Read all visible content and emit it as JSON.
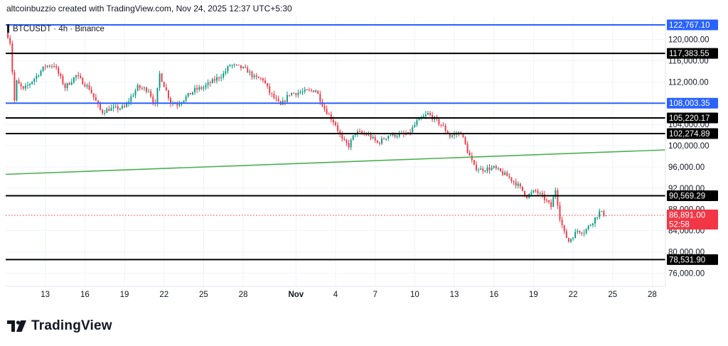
{
  "header": {
    "credit": "altcoinbuzzio created with TradingView.com, Nov 24, 2025 12:37 UTC+5:30"
  },
  "footer": {
    "brand": "TradingView"
  },
  "chart_data": {
    "type": "candlestick",
    "title": "BTCUSDT · 4h · Binance",
    "y_axis": {
      "range": [
        73500,
        124500
      ],
      "ticks": [
        {
          "label": "120,000.00",
          "value": 120000
        },
        {
          "label": "116,000.00",
          "value": 116000
        },
        {
          "label": "112,000.00",
          "value": 112000
        },
        {
          "label": "104,000.00",
          "value": 104000
        },
        {
          "label": "100,000.00",
          "value": 100000
        },
        {
          "label": "96,000.00",
          "value": 96000
        },
        {
          "label": "92,000.00",
          "value": 92000
        },
        {
          "label": "88,000.00",
          "value": 88000
        },
        {
          "label": "84,000.00",
          "value": 84000
        },
        {
          "label": "80,000.00",
          "value": 80000
        },
        {
          "label": "76,000.00",
          "value": 76000
        }
      ]
    },
    "x_axis": {
      "range": [
        "2025-10-10",
        "2025-11-29"
      ],
      "ticks": [
        {
          "label": "13",
          "date": "2025-10-13"
        },
        {
          "label": "16",
          "date": "2025-10-16"
        },
        {
          "label": "19",
          "date": "2025-10-19"
        },
        {
          "label": "22",
          "date": "2025-10-22"
        },
        {
          "label": "25",
          "date": "2025-10-25"
        },
        {
          "label": "28",
          "date": "2025-10-28"
        },
        {
          "label": "Nov",
          "date": "2025-11-01",
          "bold": true
        },
        {
          "label": "4",
          "date": "2025-11-04"
        },
        {
          "label": "7",
          "date": "2025-11-07"
        },
        {
          "label": "10",
          "date": "2025-11-10"
        },
        {
          "label": "13",
          "date": "2025-11-13"
        },
        {
          "label": "16",
          "date": "2025-11-16"
        },
        {
          "label": "19",
          "date": "2025-11-19"
        },
        {
          "label": "22",
          "date": "2025-11-22"
        },
        {
          "label": "25",
          "date": "2025-11-25"
        },
        {
          "label": "28",
          "date": "2025-11-28"
        }
      ]
    },
    "levels": [
      {
        "value": 122767.1,
        "label": "122,767.10",
        "color": "#2962ff"
      },
      {
        "value": 117383.55,
        "label": "117,383.55",
        "color": "#000000"
      },
      {
        "value": 108003.35,
        "label": "108,003.35",
        "color": "#2962ff"
      },
      {
        "value": 105220.17,
        "label": "105,220.17",
        "color": "#000000"
      },
      {
        "value": 102274.89,
        "label": "102,274.89",
        "color": "#000000"
      },
      {
        "value": 90569.29,
        "label": "90,569.29",
        "color": "#000000"
      },
      {
        "value": 78531.9,
        "label": "78,531.90",
        "color": "#000000"
      }
    ],
    "trendline": {
      "color": "#4caf50",
      "points": [
        {
          "date": "2025-10-10",
          "value": 94600
        },
        {
          "date": "2025-11-29",
          "value": 99200
        }
      ]
    },
    "last_price": {
      "value": 86891.0,
      "label": "86,891.00",
      "countdown": "52:58",
      "color": "#f23645"
    },
    "candle_colors": {
      "up": "#089981",
      "down": "#f23645"
    },
    "close_path": [
      {
        "date": "2025-10-10T00:00",
        "close": 122000
      },
      {
        "date": "2025-10-10T08:00",
        "close": 119500
      },
      {
        "date": "2025-10-10T16:00",
        "close": 108500
      },
      {
        "date": "2025-10-10T20:00",
        "close": 112000
      },
      {
        "date": "2025-10-11T08:00",
        "close": 110500
      },
      {
        "date": "2025-10-12T00:00",
        "close": 112200
      },
      {
        "date": "2025-10-13T00:00",
        "close": 115000
      },
      {
        "date": "2025-10-13T16:00",
        "close": 115200
      },
      {
        "date": "2025-10-14T12:00",
        "close": 111000
      },
      {
        "date": "2025-10-15T08:00",
        "close": 113200
      },
      {
        "date": "2025-10-16T08:00",
        "close": 110800
      },
      {
        "date": "2025-10-17T06:00",
        "close": 106300
      },
      {
        "date": "2025-10-17T20:00",
        "close": 106900
      },
      {
        "date": "2025-10-19T00:00",
        "close": 107200
      },
      {
        "date": "2025-10-20T00:00",
        "close": 111000
      },
      {
        "date": "2025-10-20T20:00",
        "close": 110500
      },
      {
        "date": "2025-10-21T08:00",
        "close": 107500
      },
      {
        "date": "2025-10-21T16:00",
        "close": 113500
      },
      {
        "date": "2025-10-22T12:00",
        "close": 108200
      },
      {
        "date": "2025-10-23T00:00",
        "close": 107800
      },
      {
        "date": "2025-10-24T08:00",
        "close": 110500
      },
      {
        "date": "2025-10-25T00:00",
        "close": 111000
      },
      {
        "date": "2025-10-26T12:00",
        "close": 113500
      },
      {
        "date": "2025-10-27T00:00",
        "close": 115200
      },
      {
        "date": "2025-10-27T20:00",
        "close": 114700
      },
      {
        "date": "2025-10-28T08:00",
        "close": 114100
      },
      {
        "date": "2025-10-28T20:00",
        "close": 112800
      },
      {
        "date": "2025-10-29T12:00",
        "close": 112500
      },
      {
        "date": "2025-10-30T00:00",
        "close": 110000
      },
      {
        "date": "2025-10-30T20:00",
        "close": 107500
      },
      {
        "date": "2025-10-31T12:00",
        "close": 109800
      },
      {
        "date": "2025-11-01T12:00",
        "close": 110100
      },
      {
        "date": "2025-11-02T12:00",
        "close": 110500
      },
      {
        "date": "2025-11-03T04:00",
        "close": 107000
      },
      {
        "date": "2025-11-04T00:00",
        "close": 104000
      },
      {
        "date": "2025-11-04T12:00",
        "close": 101000
      },
      {
        "date": "2025-11-05T00:00",
        "close": 100000
      },
      {
        "date": "2025-11-05T12:00",
        "close": 102500
      },
      {
        "date": "2025-11-06T12:00",
        "close": 102000
      },
      {
        "date": "2025-11-07T04:00",
        "close": 100500
      },
      {
        "date": "2025-11-07T12:00",
        "close": 101000
      },
      {
        "date": "2025-11-08T00:00",
        "close": 102000
      },
      {
        "date": "2025-11-09T12:00",
        "close": 102100
      },
      {
        "date": "2025-11-10T04:00",
        "close": 104500
      },
      {
        "date": "2025-11-11T00:00",
        "close": 106000
      },
      {
        "date": "2025-11-11T12:00",
        "close": 105000
      },
      {
        "date": "2025-11-12T04:00",
        "close": 103500
      },
      {
        "date": "2025-11-12T16:00",
        "close": 101800
      },
      {
        "date": "2025-11-13T12:00",
        "close": 102500
      },
      {
        "date": "2025-11-14T00:00",
        "close": 99000
      },
      {
        "date": "2025-11-14T12:00",
        "close": 96000
      },
      {
        "date": "2025-11-15T00:00",
        "close": 95500
      },
      {
        "date": "2025-11-16T00:00",
        "close": 95800
      },
      {
        "date": "2025-11-17T04:00",
        "close": 94000
      },
      {
        "date": "2025-11-17T20:00",
        "close": 92500
      },
      {
        "date": "2025-11-18T12:00",
        "close": 90500
      },
      {
        "date": "2025-11-19T04:00",
        "close": 91500
      },
      {
        "date": "2025-11-19T20:00",
        "close": 90000
      },
      {
        "date": "2025-11-20T08:00",
        "close": 88500
      },
      {
        "date": "2025-11-20T16:00",
        "close": 91800
      },
      {
        "date": "2025-11-21T00:00",
        "close": 86500
      },
      {
        "date": "2025-11-21T08:00",
        "close": 83500
      },
      {
        "date": "2025-11-21T16:00",
        "close": 82000
      },
      {
        "date": "2025-11-22T08:00",
        "close": 84000
      },
      {
        "date": "2025-11-22T20:00",
        "close": 83800
      },
      {
        "date": "2025-11-23T08:00",
        "close": 85200
      },
      {
        "date": "2025-11-24T00:00",
        "close": 87500
      },
      {
        "date": "2025-11-24T12:00",
        "close": 86891
      }
    ]
  }
}
